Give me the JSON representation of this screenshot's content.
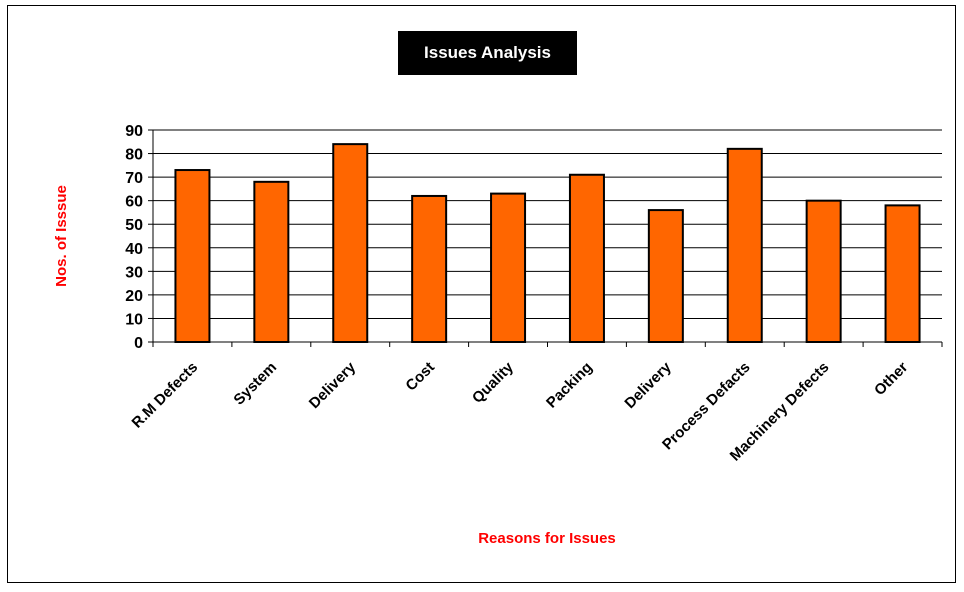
{
  "chart_data": {
    "type": "bar",
    "title": "Issues Analysis",
    "xlabel": "Reasons for Issues",
    "ylabel": "Nos. of Isssue",
    "categories": [
      "R.M Defects",
      "System",
      "Delivery",
      "Cost",
      "Quality",
      "Packing",
      "Delivery",
      "Process Defacts",
      "Machinery Defects",
      "Other"
    ],
    "values": [
      73,
      68,
      84,
      62,
      63,
      71,
      56,
      82,
      60,
      58
    ],
    "ylim": [
      0,
      90
    ],
    "yticks": [
      0,
      10,
      20,
      30,
      40,
      50,
      60,
      70,
      80,
      90
    ],
    "grid": true,
    "colors": {
      "bar": "#FF6600",
      "bar_stroke": "#000000",
      "axis_label": "#FF0000",
      "title_bg": "#000000",
      "title_fg": "#FFFFFF"
    }
  }
}
